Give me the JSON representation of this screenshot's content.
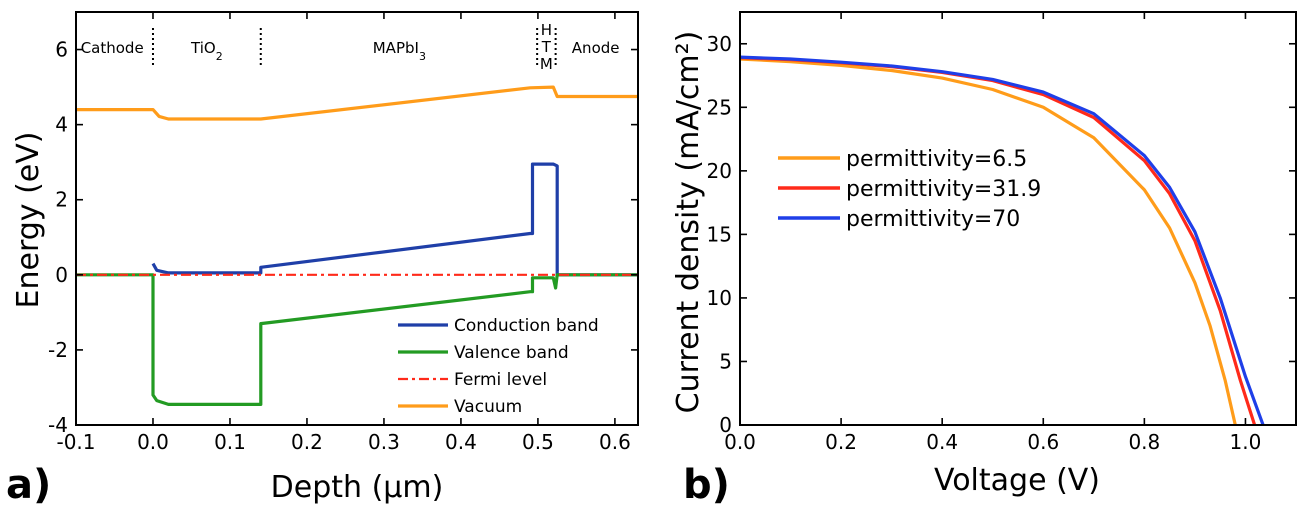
{
  "figure": {
    "panel_a_label": "a)",
    "panel_b_label": "b)"
  },
  "chart_data": [
    {
      "type": "line",
      "xlabel": "Depth (μm)",
      "ylabel": "Energy (eV)",
      "xlim": [
        -0.1,
        0.63
      ],
      "ylim": [
        -4,
        7
      ],
      "xticks": [
        "-0.1",
        "0.0",
        "0.1",
        "0.2",
        "0.3",
        "0.4",
        "0.5",
        "0.6"
      ],
      "xtick_values": [
        -0.1,
        0.0,
        0.1,
        0.2,
        0.3,
        0.4,
        0.5,
        0.6
      ],
      "yticks": [
        "-4",
        "-2",
        "0",
        "2",
        "4",
        "6"
      ],
      "ytick_values": [
        -4,
        -2,
        0,
        2,
        4,
        6
      ],
      "grid": false,
      "legend_position": "bottom-right",
      "regions": [
        {
          "label": "Cathode",
          "x": -0.053
        },
        {
          "label": "TiO2",
          "x": 0.07
        },
        {
          "label": "MAPbI3",
          "x": 0.32
        },
        {
          "label": "H T M",
          "x": 0.511
        },
        {
          "label": "Anode",
          "x": 0.575
        }
      ],
      "region_dividers": [
        0.0,
        0.14,
        0.499,
        0.523
      ],
      "series": [
        {
          "name": "Conduction band",
          "color": "#1f3fa8",
          "points": [
            [
              0.0,
              0.3
            ],
            [
              0.005,
              0.12
            ],
            [
              0.02,
              0.05
            ],
            [
              0.14,
              0.05
            ],
            [
              0.14,
              0.2
            ],
            [
              0.49,
              1.1
            ],
            [
              0.493,
              1.1
            ],
            [
              0.493,
              2.95
            ],
            [
              0.52,
              2.95
            ],
            [
              0.525,
              2.9
            ],
            [
              0.525,
              0.0
            ],
            [
              0.63,
              0.0
            ]
          ]
        },
        {
          "name": "Valence band",
          "color": "#239b23",
          "points": [
            [
              -0.1,
              0.0
            ],
            [
              0.0,
              0.0
            ],
            [
              0.0,
              -3.2
            ],
            [
              0.005,
              -3.35
            ],
            [
              0.02,
              -3.45
            ],
            [
              0.14,
              -3.45
            ],
            [
              0.14,
              -1.3
            ],
            [
              0.49,
              -0.45
            ],
            [
              0.493,
              -0.45
            ],
            [
              0.493,
              -0.08
            ],
            [
              0.52,
              -0.08
            ],
            [
              0.523,
              -0.35
            ],
            [
              0.525,
              0.0
            ],
            [
              0.63,
              0.0
            ]
          ]
        },
        {
          "name": "Fermi level",
          "color": "#ff2a1a",
          "dash": "10 4 3 4",
          "points": [
            [
              -0.1,
              0.0
            ],
            [
              0.63,
              0.0
            ]
          ]
        },
        {
          "name": "Vacuum",
          "color": "#ff9c1a",
          "points": [
            [
              -0.1,
              4.4
            ],
            [
              0.0,
              4.4
            ],
            [
              0.008,
              4.22
            ],
            [
              0.02,
              4.15
            ],
            [
              0.14,
              4.15
            ],
            [
              0.49,
              4.98
            ],
            [
              0.52,
              5.0
            ],
            [
              0.525,
              4.75
            ],
            [
              0.63,
              4.75
            ]
          ]
        }
      ]
    },
    {
      "type": "line",
      "xlabel": "Voltage (V)",
      "ylabel": "Current density (mA/cm²)",
      "xlim": [
        0.0,
        1.1
      ],
      "ylim": [
        0,
        32.5
      ],
      "xticks": [
        "0.0",
        "0.2",
        "0.4",
        "0.6",
        "0.8",
        "1.0"
      ],
      "xtick_values": [
        0.0,
        0.2,
        0.4,
        0.6,
        0.8,
        1.0
      ],
      "yticks": [
        "0",
        "5",
        "10",
        "15",
        "20",
        "25",
        "30"
      ],
      "ytick_values": [
        0,
        5,
        10,
        15,
        20,
        25,
        30
      ],
      "grid": false,
      "legend_position": "middle-left",
      "series": [
        {
          "name": "permittivity=6.5",
          "color": "#ff9c1a",
          "points": [
            [
              0.0,
              28.8
            ],
            [
              0.1,
              28.6
            ],
            [
              0.2,
              28.3
            ],
            [
              0.3,
              27.9
            ],
            [
              0.4,
              27.3
            ],
            [
              0.5,
              26.4
            ],
            [
              0.6,
              25.0
            ],
            [
              0.7,
              22.6
            ],
            [
              0.8,
              18.5
            ],
            [
              0.85,
              15.5
            ],
            [
              0.9,
              11.2
            ],
            [
              0.93,
              7.8
            ],
            [
              0.96,
              3.5
            ],
            [
              0.98,
              0.0
            ]
          ]
        },
        {
          "name": "permittivity=31.9",
          "color": "#ff2a1a",
          "points": [
            [
              0.0,
              28.9
            ],
            [
              0.1,
              28.75
            ],
            [
              0.2,
              28.5
            ],
            [
              0.3,
              28.2
            ],
            [
              0.4,
              27.75
            ],
            [
              0.5,
              27.1
            ],
            [
              0.6,
              26.0
            ],
            [
              0.7,
              24.2
            ],
            [
              0.8,
              20.8
            ],
            [
              0.85,
              18.2
            ],
            [
              0.9,
              14.5
            ],
            [
              0.95,
              9.0
            ],
            [
              0.99,
              3.5
            ],
            [
              1.018,
              0.0
            ]
          ]
        },
        {
          "name": "permittivity=70",
          "color": "#1f3fe8",
          "points": [
            [
              0.0,
              28.95
            ],
            [
              0.1,
              28.8
            ],
            [
              0.2,
              28.55
            ],
            [
              0.3,
              28.25
            ],
            [
              0.4,
              27.8
            ],
            [
              0.5,
              27.2
            ],
            [
              0.6,
              26.2
            ],
            [
              0.7,
              24.5
            ],
            [
              0.8,
              21.2
            ],
            [
              0.85,
              18.7
            ],
            [
              0.9,
              15.2
            ],
            [
              0.95,
              10.0
            ],
            [
              1.0,
              3.8
            ],
            [
              1.035,
              0.0
            ]
          ]
        }
      ]
    }
  ]
}
